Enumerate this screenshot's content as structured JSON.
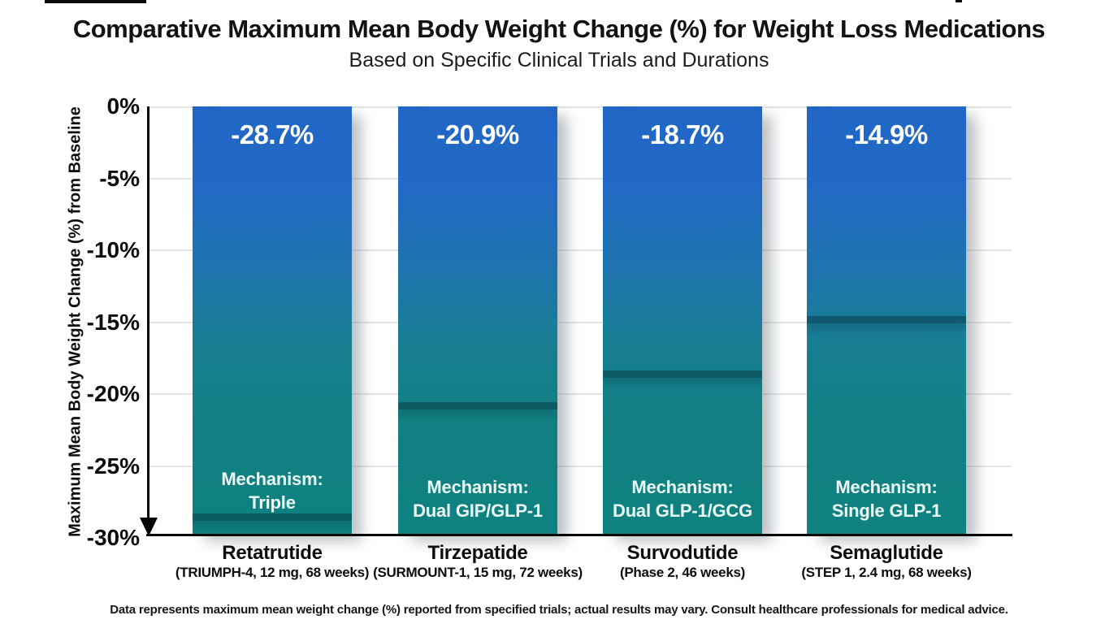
{
  "header": {
    "title": "Comparative Maximum Mean Body Weight Change (%) for Weight Loss Medications",
    "subtitle": "Based on Specific Clinical Trials and Durations"
  },
  "y_axis": {
    "label": "Maximum Mean Body Weight Change (%) from Baseline",
    "ticks": [
      "0%",
      "-5%",
      "-10%",
      "-15%",
      "-20%",
      "-25%",
      "-30%"
    ]
  },
  "bars": [
    {
      "name": "Retatrutide",
      "trial": "(TRIUMPH-4, 12 mg, 68 weeks)",
      "value_label": "-28.7%",
      "mechanism_title": "Mechanism:",
      "mechanism_type": "Triple"
    },
    {
      "name": "Tirzepatide",
      "trial": "(SURMOUNT-1, 15 mg, 72 weeks)",
      "value_label": "-20.9%",
      "mechanism_title": "Mechanism:",
      "mechanism_type": "Dual GIP/GLP-1"
    },
    {
      "name": "Survodutide",
      "trial": "(Phase 2, 46 weeks)",
      "value_label": "-18.7%",
      "mechanism_title": "Mechanism:",
      "mechanism_type": "Dual GLP-1/GCG"
    },
    {
      "name": "Semaglutide",
      "trial": "(STEP 1, 2.4 mg, 68 weeks)",
      "value_label": "-14.9%",
      "mechanism_title": "Mechanism:",
      "mechanism_type": "Single GLP-1"
    }
  ],
  "footnote": "Data represents maximum mean weight change (%) reported from specified trials; actual results may vary. Consult healthcare professionals for medical advice.",
  "chart_data": {
    "type": "bar",
    "title": "Comparative Maximum Mean Body Weight Change (%) for Weight Loss Medications",
    "subtitle": "Based on Specific Clinical Trials and Durations",
    "categories": [
      "Retatrutide",
      "Tirzepatide",
      "Survodutide",
      "Semaglutide"
    ],
    "category_details": [
      "(TRIUMPH-4, 12 mg, 68 weeks)",
      "(SURMOUNT-1, 15 mg, 72 weeks)",
      "(Phase 2, 46 weeks)",
      "(STEP 1, 2.4 mg, 68 weeks)"
    ],
    "values": [
      -28.7,
      -20.9,
      -18.7,
      -14.9
    ],
    "value_labels": [
      "-28.7%",
      "-20.9%",
      "-18.7%",
      "-14.9%"
    ],
    "bar_annotations": [
      "Mechanism: Triple",
      "Mechanism: Dual GIP/GLP-1",
      "Mechanism: Dual GLP-1/GCG",
      "Mechanism: Single GLP-1"
    ],
    "xlabel": "",
    "ylabel": "Maximum Mean Body Weight Change (%) from Baseline",
    "ylim": [
      -30,
      0
    ],
    "yticks": [
      0,
      -5,
      -10,
      -15,
      -20,
      -25,
      -30
    ],
    "grid": true,
    "legend": false,
    "footnote": "Data represents maximum mean weight change (%) reported from specified trials; actual results may vary. Consult healthcare professionals for medical advice.",
    "colors": {
      "bar_gradient_top": "#2166c5",
      "bar_gradient_bottom": "#0e8180",
      "value_label_text": "#ffffff",
      "mechanism_text": "#ecfaf6",
      "axis": "#050505",
      "grid": "#e4e4e4",
      "title_text": "#121212"
    }
  }
}
